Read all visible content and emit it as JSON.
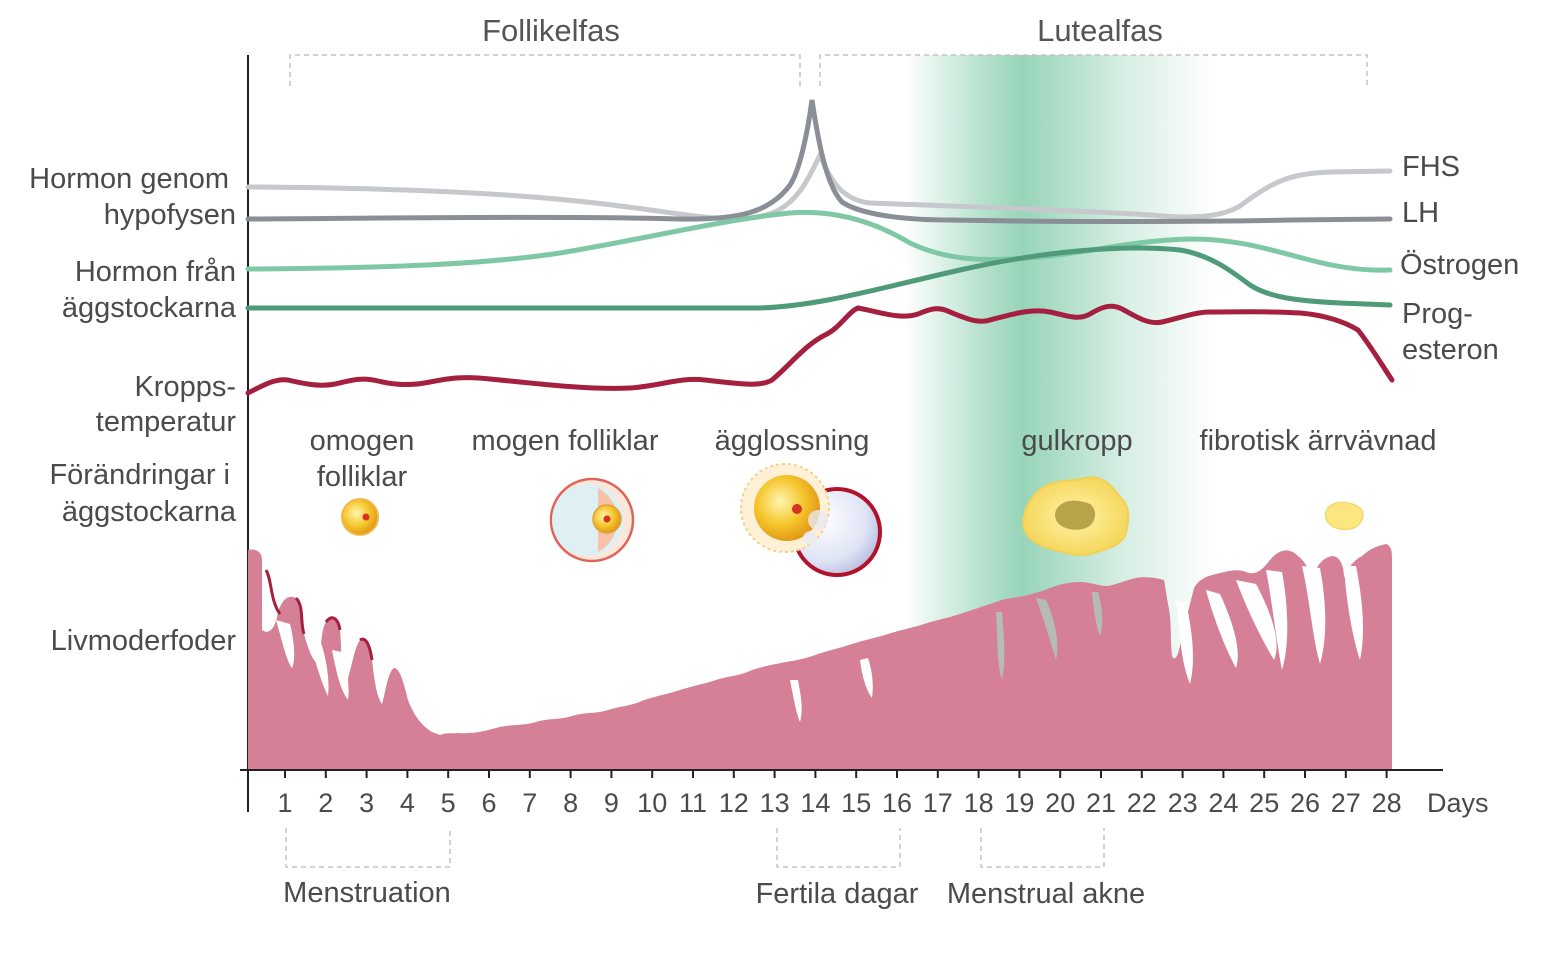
{
  "phases": {
    "follicular": "Follikelfas",
    "luteal": "Lutealfas"
  },
  "row_labels": {
    "pituitary_hormones": [
      "Hormon genom",
      "hypofysen"
    ],
    "ovarian_hormones": [
      "Hormon från",
      "äggstockarna"
    ],
    "body_temperature": [
      "Kropps-",
      "temperatur"
    ],
    "ovary_changes": [
      "Förändringar i",
      "äggstockarna"
    ],
    "endometrium": "Livmoderfoder"
  },
  "series_labels": {
    "fhs": "FHS",
    "lh": "LH",
    "estrogen": "Östrogen",
    "progesterone": [
      "Prog-",
      "esteron"
    ]
  },
  "stages": {
    "immature": [
      "omogen",
      "folliklar"
    ],
    "mature": "mogen folliklar",
    "ovulation": "ägglossning",
    "corpus_luteum": "gulkropp",
    "fibrotic": "fibrotisk ärrvävnad"
  },
  "days": [
    "1",
    "2",
    "3",
    "4",
    "5",
    "6",
    "7",
    "8",
    "9",
    "10",
    "11",
    "12",
    "13",
    "14",
    "15",
    "16",
    "17",
    "18",
    "19",
    "20",
    "21",
    "22",
    "23",
    "24",
    "25",
    "26",
    "27",
    "28"
  ],
  "days_unit": "Days",
  "menstruation_days": [
    1,
    2,
    3,
    4,
    5
  ],
  "fertile_days": [
    13,
    14,
    15,
    16
  ],
  "annotations": {
    "menstruation": "Menstruation",
    "fertile": "Fertila dagar",
    "acne": "Menstrual akne"
  },
  "colors": {
    "fhs": "#c6c8cc",
    "lh": "#8a8f96",
    "estrogen": "#7fc8a6",
    "progesterone": "#4e9a79",
    "temperature": "#a51f3f",
    "endometrium": "#d58096",
    "menstruation_day": "#a51f3f",
    "fertile_day": "#7fc8a6",
    "luteal_band": "#2faa72"
  }
}
